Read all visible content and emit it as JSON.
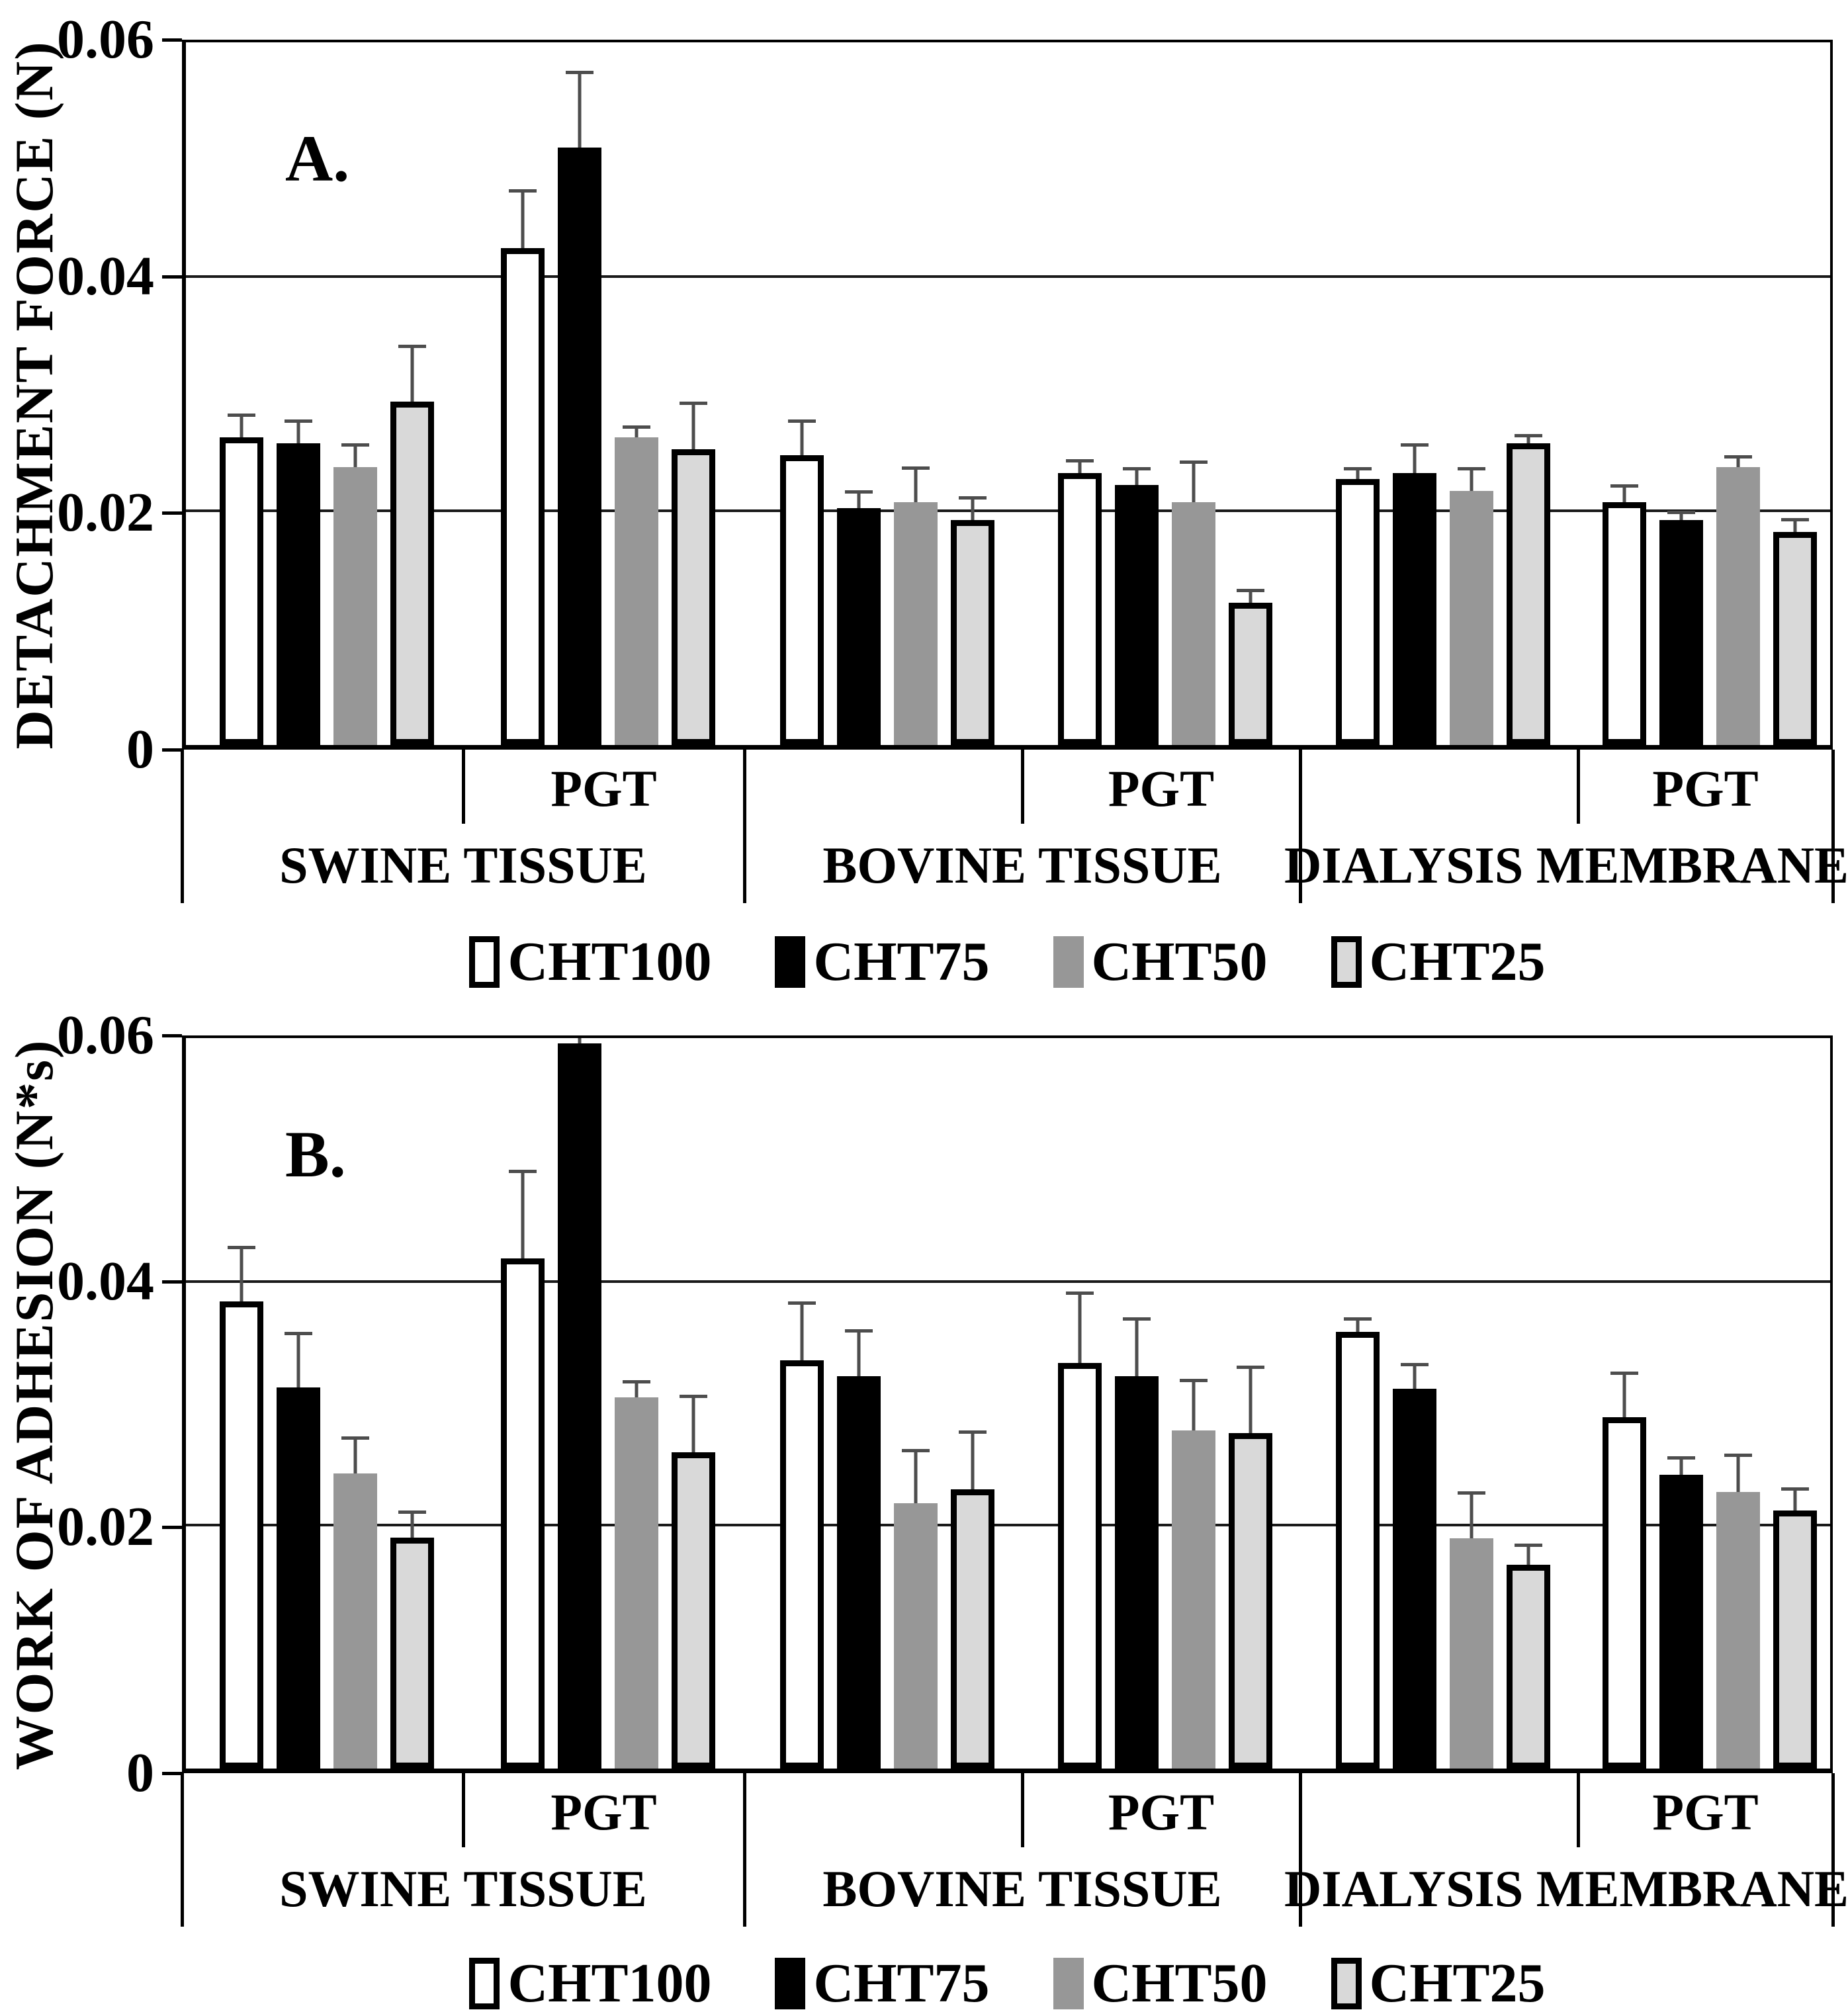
{
  "figure": {
    "background": "#ffffff",
    "axis_color": "#000000",
    "errorbar_color": "#4d4d4d"
  },
  "chart_data": [
    {
      "type": "bar",
      "panel_label": "A.",
      "ylabel": "DETACHMENT FORCE (N)",
      "ylim": [
        0,
        0.06
      ],
      "grid": true,
      "legend_position": "bottom",
      "yticks": [
        "0.06",
        "0.04",
        "0.02",
        "0"
      ],
      "ytick_values": [
        0.06,
        0.04,
        0.02,
        0
      ],
      "groups": [
        "SWINE TISSUE",
        "BOVINE TISSUE",
        "DIALYSIS MEMBRANE"
      ],
      "subgroup_labels": [
        "",
        "PGT",
        "",
        "PGT",
        "",
        "PGT"
      ],
      "categories": [
        "SWINE TISSUE",
        "SWINE TISSUE PGT",
        "BOVINE TISSUE",
        "BOVINE TISSUE PGT",
        "DIALYSIS MEMBRANE",
        "DIALYSIS MEMBRANE PGT"
      ],
      "series": [
        {
          "name": "CHT100",
          "fill": "#ffffff",
          "border": true,
          "values": [
            0.026,
            0.042,
            0.0245,
            0.023,
            0.0225,
            0.0205
          ],
          "errors": [
            0.002,
            0.005,
            0.003,
            0.0012,
            0.001,
            0.0015
          ]
        },
        {
          "name": "CHT75",
          "fill": "#000000",
          "border": true,
          "values": [
            0.0255,
            0.0505,
            0.02,
            0.022,
            0.023,
            0.019
          ],
          "errors": [
            0.002,
            0.0065,
            0.0015,
            0.0015,
            0.0025,
            0.0008
          ]
        },
        {
          "name": "CHT50",
          "fill": "#979797",
          "border": false,
          "values": [
            0.0235,
            0.026,
            0.0205,
            0.0205,
            0.0215,
            0.0235
          ],
          "errors": [
            0.002,
            0.001,
            0.003,
            0.0035,
            0.002,
            0.001
          ]
        },
        {
          "name": "CHT25",
          "fill": "#d9d9d9",
          "border": true,
          "values": [
            0.029,
            0.025,
            0.019,
            0.012,
            0.0255,
            0.018
          ],
          "errors": [
            0.0048,
            0.004,
            0.002,
            0.0012,
            0.0008,
            0.0012
          ]
        }
      ],
      "legend": [
        "CHT100",
        "CHT75",
        "CHT50",
        "CHT25"
      ]
    },
    {
      "type": "bar",
      "panel_label": "B.",
      "ylabel": "WORK OF ADHESION (N*s)",
      "ylim": [
        0,
        0.06
      ],
      "grid": true,
      "legend_position": "bottom",
      "yticks": [
        "0.06",
        "0.04",
        "0.02",
        "0"
      ],
      "ytick_values": [
        0.06,
        0.04,
        0.02,
        0
      ],
      "groups": [
        "SWINE TISSUE",
        "BOVINE TISSUE",
        "DIALYSIS MEMBRANE"
      ],
      "subgroup_labels": [
        "",
        "PGT",
        "",
        "PGT",
        "",
        "PGT"
      ],
      "categories": [
        "SWINE TISSUE",
        "SWINE TISSUE PGT",
        "BOVINE TISSUE",
        "BOVINE TISSUE PGT",
        "DIALYSIS MEMBRANE",
        "DIALYSIS MEMBRANE PGT"
      ],
      "series": [
        {
          "name": "CHT100",
          "fill": "#ffffff",
          "border": true,
          "values": [
            0.038,
            0.0415,
            0.0332,
            0.033,
            0.0355,
            0.0286
          ],
          "errors": [
            0.0045,
            0.0072,
            0.0048,
            0.0058,
            0.0012,
            0.0037
          ]
        },
        {
          "name": "CHT75",
          "fill": "#000000",
          "border": true,
          "values": [
            0.031,
            0.059,
            0.0319,
            0.0319,
            0.0309,
            0.0239
          ],
          "errors": [
            0.0045,
            0.002,
            0.0038,
            0.0048,
            0.0021,
            0.0015
          ]
        },
        {
          "name": "CHT50",
          "fill": "#979797",
          "border": false,
          "values": [
            0.024,
            0.0302,
            0.0216,
            0.0275,
            0.0187,
            0.0225
          ],
          "errors": [
            0.003,
            0.0014,
            0.0044,
            0.0042,
            0.0038,
            0.0031
          ]
        },
        {
          "name": "CHT25",
          "fill": "#d9d9d9",
          "border": true,
          "values": [
            0.0188,
            0.0257,
            0.0227,
            0.0273,
            0.0166,
            0.021
          ],
          "errors": [
            0.0022,
            0.0047,
            0.0048,
            0.0055,
            0.0017,
            0.0019
          ]
        }
      ],
      "legend": [
        "CHT100",
        "CHT75",
        "CHT50",
        "CHT25"
      ]
    }
  ]
}
